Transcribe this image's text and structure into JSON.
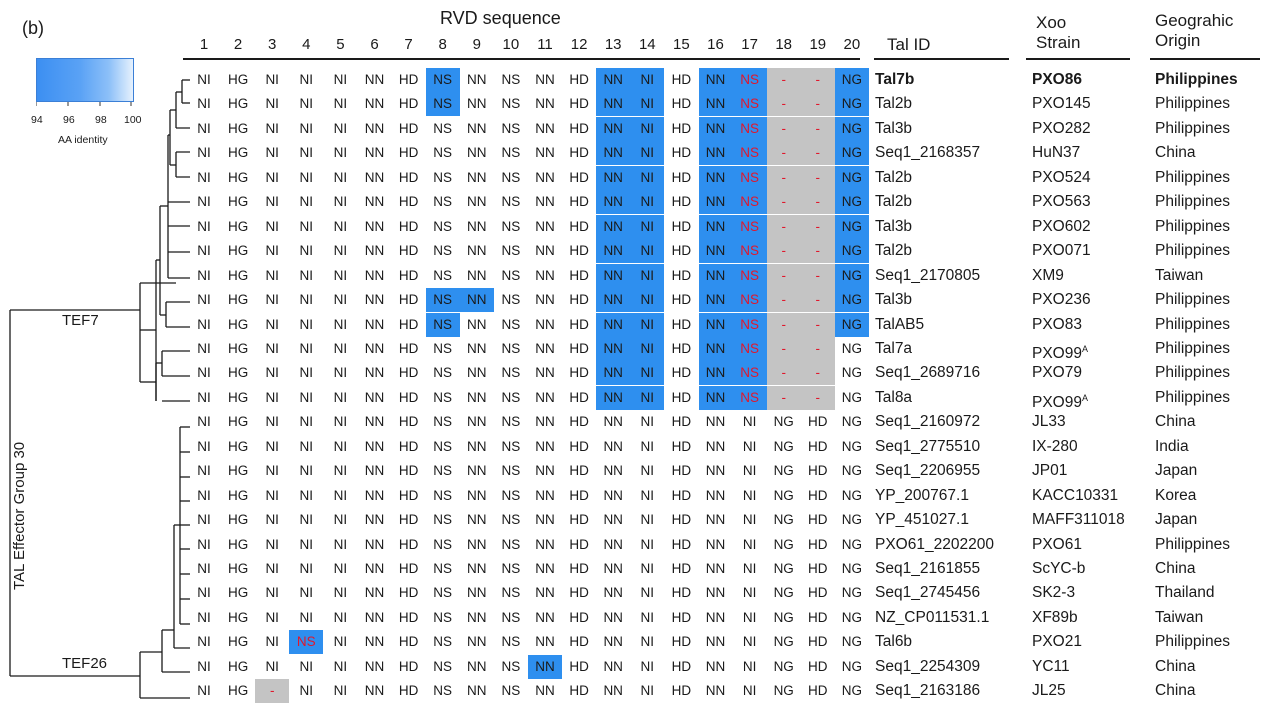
{
  "panel_label": "(b)",
  "rvd_title": "RVD sequence",
  "column_numbers": [
    "1",
    "2",
    "3",
    "4",
    "5",
    "6",
    "7",
    "8",
    "9",
    "10",
    "11",
    "12",
    "13",
    "14",
    "15",
    "16",
    "17",
    "18",
    "19",
    "20"
  ],
  "headers": {
    "tal_id": "Tal ID",
    "xoo_strain_line1": "Xoo",
    "xoo_strain_line2": "Strain",
    "origin_line1": "Geograhic",
    "origin_line2": "Origin"
  },
  "legend": {
    "ticks": [
      "94",
      "96",
      "98",
      "100"
    ],
    "title": "AA identity"
  },
  "group_labels": {
    "tef7": "TEF7",
    "tef26": "TEF26",
    "group": "TAL Effector Group 30"
  },
  "colors": {
    "high_identity": "#2e8fef",
    "missing": "#c4c4c4",
    "deviating_rvd": "#e0182d"
  },
  "rows": [
    {
      "rvds": [
        "NI",
        "HG",
        "NI",
        "NI",
        "NI",
        "NN",
        "HD",
        "NS",
        "NN",
        "NS",
        "NN",
        "HD",
        "NN",
        "NI",
        "HD",
        "NN",
        "NS",
        "-",
        "-",
        "NG"
      ],
      "blue": [
        8,
        13,
        14,
        16,
        17,
        20
      ],
      "red": [
        17,
        18,
        19
      ],
      "gray": [
        18,
        19
      ],
      "tal_id": "Tal7b",
      "strain": "PXO86",
      "origin": "Philippines",
      "bold": true
    },
    {
      "rvds": [
        "NI",
        "HG",
        "NI",
        "NI",
        "NI",
        "NN",
        "HD",
        "NS",
        "NN",
        "NS",
        "NN",
        "HD",
        "NN",
        "NI",
        "HD",
        "NN",
        "NS",
        "-",
        "-",
        "NG"
      ],
      "blue": [
        8,
        13,
        14,
        16,
        17,
        20
      ],
      "red": [
        17,
        18,
        19
      ],
      "gray": [
        18,
        19
      ],
      "tal_id": "Tal2b",
      "strain": "PXO145",
      "origin": "Philippines"
    },
    {
      "rvds": [
        "NI",
        "HG",
        "NI",
        "NI",
        "NI",
        "NN",
        "HD",
        "NS",
        "NN",
        "NS",
        "NN",
        "HD",
        "NN",
        "NI",
        "HD",
        "NN",
        "NS",
        "-",
        "-",
        "NG"
      ],
      "blue": [
        13,
        14,
        16,
        17,
        20
      ],
      "red": [
        17,
        18,
        19
      ],
      "gray": [
        18,
        19
      ],
      "tal_id": "Tal3b",
      "strain": "PXO282",
      "origin": "Philippines"
    },
    {
      "rvds": [
        "NI",
        "HG",
        "NI",
        "NI",
        "NI",
        "NN",
        "HD",
        "NS",
        "NN",
        "NS",
        "NN",
        "HD",
        "NN",
        "NI",
        "HD",
        "NN",
        "NS",
        "-",
        "-",
        "NG"
      ],
      "blue": [
        13,
        14,
        16,
        17,
        20
      ],
      "red": [
        17,
        18,
        19
      ],
      "gray": [
        18,
        19
      ],
      "tal_id": "Seq1_2168357",
      "strain": "HuN37",
      "origin": "China"
    },
    {
      "rvds": [
        "NI",
        "HG",
        "NI",
        "NI",
        "NI",
        "NN",
        "HD",
        "NS",
        "NN",
        "NS",
        "NN",
        "HD",
        "NN",
        "NI",
        "HD",
        "NN",
        "NS",
        "-",
        "-",
        "NG"
      ],
      "blue": [
        13,
        14,
        16,
        17,
        20
      ],
      "red": [
        17,
        18,
        19
      ],
      "gray": [
        18,
        19
      ],
      "tal_id": "Tal2b",
      "strain": "PXO524",
      "origin": "Philippines"
    },
    {
      "rvds": [
        "NI",
        "HG",
        "NI",
        "NI",
        "NI",
        "NN",
        "HD",
        "NS",
        "NN",
        "NS",
        "NN",
        "HD",
        "NN",
        "NI",
        "HD",
        "NN",
        "NS",
        "-",
        "-",
        "NG"
      ],
      "blue": [
        13,
        14,
        16,
        17,
        20
      ],
      "red": [
        17,
        18,
        19
      ],
      "gray": [
        18,
        19
      ],
      "tal_id": "Tal2b",
      "strain": "PXO563",
      "origin": "Philippines"
    },
    {
      "rvds": [
        "NI",
        "HG",
        "NI",
        "NI",
        "NI",
        "NN",
        "HD",
        "NS",
        "NN",
        "NS",
        "NN",
        "HD",
        "NN",
        "NI",
        "HD",
        "NN",
        "NS",
        "-",
        "-",
        "NG"
      ],
      "blue": [
        13,
        14,
        16,
        17,
        20
      ],
      "red": [
        17,
        18,
        19
      ],
      "gray": [
        18,
        19
      ],
      "tal_id": "Tal3b",
      "strain": "PXO602",
      "origin": "Philippines"
    },
    {
      "rvds": [
        "NI",
        "HG",
        "NI",
        "NI",
        "NI",
        "NN",
        "HD",
        "NS",
        "NN",
        "NS",
        "NN",
        "HD",
        "NN",
        "NI",
        "HD",
        "NN",
        "NS",
        "-",
        "-",
        "NG"
      ],
      "blue": [
        13,
        14,
        16,
        17,
        20
      ],
      "red": [
        17,
        18,
        19
      ],
      "gray": [
        18,
        19
      ],
      "tal_id": "Tal2b",
      "strain": "PXO071",
      "origin": "Philippines"
    },
    {
      "rvds": [
        "NI",
        "HG",
        "NI",
        "NI",
        "NI",
        "NN",
        "HD",
        "NS",
        "NN",
        "NS",
        "NN",
        "HD",
        "NN",
        "NI",
        "HD",
        "NN",
        "NS",
        "-",
        "-",
        "NG"
      ],
      "blue": [
        13,
        14,
        16,
        17,
        20
      ],
      "red": [
        17,
        18,
        19
      ],
      "gray": [
        18,
        19
      ],
      "tal_id": "Seq1_2170805",
      "strain": "XM9",
      "origin": "Taiwan"
    },
    {
      "rvds": [
        "NI",
        "HG",
        "NI",
        "NI",
        "NI",
        "NN",
        "HD",
        "NS",
        "NN",
        "NS",
        "NN",
        "HD",
        "NN",
        "NI",
        "HD",
        "NN",
        "NS",
        "-",
        "-",
        "NG"
      ],
      "blue": [
        8,
        9,
        13,
        14,
        16,
        17,
        20
      ],
      "red": [
        17,
        18,
        19
      ],
      "gray": [
        18,
        19
      ],
      "tal_id": "Tal3b",
      "strain": "PXO236",
      "origin": "Philippines"
    },
    {
      "rvds": [
        "NI",
        "HG",
        "NI",
        "NI",
        "NI",
        "NN",
        "HD",
        "NS",
        "NN",
        "NS",
        "NN",
        "HD",
        "NN",
        "NI",
        "HD",
        "NN",
        "NS",
        "-",
        "-",
        "NG"
      ],
      "blue": [
        8,
        13,
        14,
        16,
        17,
        20
      ],
      "red": [
        17,
        18,
        19
      ],
      "gray": [
        18,
        19
      ],
      "tal_id": "TalAB5",
      "strain": "PXO83",
      "origin": "Philippines"
    },
    {
      "rvds": [
        "NI",
        "HG",
        "NI",
        "NI",
        "NI",
        "NN",
        "HD",
        "NS",
        "NN",
        "NS",
        "NN",
        "HD",
        "NN",
        "NI",
        "HD",
        "NN",
        "NS",
        "-",
        "-",
        "NG"
      ],
      "blue": [
        13,
        14,
        16,
        17
      ],
      "red": [
        17,
        18,
        19
      ],
      "gray": [
        18,
        19
      ],
      "tal_id": "Tal7a",
      "strain": "PXO99",
      "strain_sup": "A",
      "origin": "Philippines"
    },
    {
      "rvds": [
        "NI",
        "HG",
        "NI",
        "NI",
        "NI",
        "NN",
        "HD",
        "NS",
        "NN",
        "NS",
        "NN",
        "HD",
        "NN",
        "NI",
        "HD",
        "NN",
        "NS",
        "-",
        "-",
        "NG"
      ],
      "blue": [
        13,
        14,
        16,
        17
      ],
      "red": [
        17,
        18,
        19
      ],
      "gray": [
        18,
        19
      ],
      "tal_id": "Seq1_2689716",
      "strain": "PXO79",
      "origin": "Philippines"
    },
    {
      "rvds": [
        "NI",
        "HG",
        "NI",
        "NI",
        "NI",
        "NN",
        "HD",
        "NS",
        "NN",
        "NS",
        "NN",
        "HD",
        "NN",
        "NI",
        "HD",
        "NN",
        "NS",
        "-",
        "-",
        "NG"
      ],
      "blue": [
        13,
        14,
        16,
        17
      ],
      "red": [
        17,
        18,
        19
      ],
      "gray": [
        18,
        19
      ],
      "tal_id": "Tal8a",
      "strain": "PXO99",
      "strain_sup": "A",
      "origin": "Philippines"
    },
    {
      "rvds": [
        "NI",
        "HG",
        "NI",
        "NI",
        "NI",
        "NN",
        "HD",
        "NS",
        "NN",
        "NS",
        "NN",
        "HD",
        "NN",
        "NI",
        "HD",
        "NN",
        "NI",
        "NG",
        "HD",
        "NG"
      ],
      "blue": [],
      "red": [],
      "gray": [],
      "tal_id": "Seq1_2160972",
      "strain": "JL33",
      "origin": "China"
    },
    {
      "rvds": [
        "NI",
        "HG",
        "NI",
        "NI",
        "NI",
        "NN",
        "HD",
        "NS",
        "NN",
        "NS",
        "NN",
        "HD",
        "NN",
        "NI",
        "HD",
        "NN",
        "NI",
        "NG",
        "HD",
        "NG"
      ],
      "blue": [],
      "red": [],
      "gray": [],
      "tal_id": "Seq1_2775510",
      "strain": "IX-280",
      "origin": "India"
    },
    {
      "rvds": [
        "NI",
        "HG",
        "NI",
        "NI",
        "NI",
        "NN",
        "HD",
        "NS",
        "NN",
        "NS",
        "NN",
        "HD",
        "NN",
        "NI",
        "HD",
        "NN",
        "NI",
        "NG",
        "HD",
        "NG"
      ],
      "blue": [],
      "red": [],
      "gray": [],
      "tal_id": "Seq1_2206955",
      "strain": "JP01",
      "origin": "Japan"
    },
    {
      "rvds": [
        "NI",
        "HG",
        "NI",
        "NI",
        "NI",
        "NN",
        "HD",
        "NS",
        "NN",
        "NS",
        "NN",
        "HD",
        "NN",
        "NI",
        "HD",
        "NN",
        "NI",
        "NG",
        "HD",
        "NG"
      ],
      "blue": [],
      "red": [],
      "gray": [],
      "tal_id": "YP_200767.1",
      "strain": "KACC10331",
      "origin": "Korea"
    },
    {
      "rvds": [
        "NI",
        "HG",
        "NI",
        "NI",
        "NI",
        "NN",
        "HD",
        "NS",
        "NN",
        "NS",
        "NN",
        "HD",
        "NN",
        "NI",
        "HD",
        "NN",
        "NI",
        "NG",
        "HD",
        "NG"
      ],
      "blue": [],
      "red": [],
      "gray": [],
      "tal_id": "YP_451027.1",
      "strain": "MAFF311018",
      "origin": "Japan"
    },
    {
      "rvds": [
        "NI",
        "HG",
        "NI",
        "NI",
        "NI",
        "NN",
        "HD",
        "NS",
        "NN",
        "NS",
        "NN",
        "HD",
        "NN",
        "NI",
        "HD",
        "NN",
        "NI",
        "NG",
        "HD",
        "NG"
      ],
      "blue": [],
      "red": [],
      "gray": [],
      "tal_id": "PXO61_2202200",
      "strain": "PXO61",
      "origin": "Philippines"
    },
    {
      "rvds": [
        "NI",
        "HG",
        "NI",
        "NI",
        "NI",
        "NN",
        "HD",
        "NS",
        "NN",
        "NS",
        "NN",
        "HD",
        "NN",
        "NI",
        "HD",
        "NN",
        "NI",
        "NG",
        "HD",
        "NG"
      ],
      "blue": [],
      "red": [],
      "gray": [],
      "tal_id": "Seq1_2161855",
      "strain": "ScYC-b",
      "origin": "China"
    },
    {
      "rvds": [
        "NI",
        "HG",
        "NI",
        "NI",
        "NI",
        "NN",
        "HD",
        "NS",
        "NN",
        "NS",
        "NN",
        "HD",
        "NN",
        "NI",
        "HD",
        "NN",
        "NI",
        "NG",
        "HD",
        "NG"
      ],
      "blue": [],
      "red": [],
      "gray": [],
      "tal_id": "Seq1_2745456",
      "strain": "SK2-3",
      "origin": "Thailand"
    },
    {
      "rvds": [
        "NI",
        "HG",
        "NI",
        "NI",
        "NI",
        "NN",
        "HD",
        "NS",
        "NN",
        "NS",
        "NN",
        "HD",
        "NN",
        "NI",
        "HD",
        "NN",
        "NI",
        "NG",
        "HD",
        "NG"
      ],
      "blue": [],
      "red": [],
      "gray": [],
      "tal_id": "NZ_CP011531.1",
      "strain": "XF89b",
      "origin": "Taiwan"
    },
    {
      "rvds": [
        "NI",
        "HG",
        "NI",
        "NS",
        "NI",
        "NN",
        "HD",
        "NS",
        "NN",
        "NS",
        "NN",
        "HD",
        "NN",
        "NI",
        "HD",
        "NN",
        "NI",
        "NG",
        "HD",
        "NG"
      ],
      "blue": [
        4
      ],
      "red": [
        4
      ],
      "gray": [],
      "tal_id": "Tal6b",
      "strain": "PXO21",
      "origin": "Philippines"
    },
    {
      "rvds": [
        "NI",
        "HG",
        "NI",
        "NI",
        "NI",
        "NN",
        "HD",
        "NS",
        "NN",
        "NS",
        "NN",
        "HD",
        "NN",
        "NI",
        "HD",
        "NN",
        "NI",
        "NG",
        "HD",
        "NG"
      ],
      "blue": [
        11
      ],
      "red": [],
      "gray": [],
      "tal_id": "Seq1_2254309",
      "strain": "YC11",
      "origin": "China"
    },
    {
      "rvds": [
        "NI",
        "HG",
        "-",
        "NI",
        "NI",
        "NN",
        "HD",
        "NS",
        "NN",
        "NS",
        "NN",
        "HD",
        "NN",
        "NI",
        "HD",
        "NN",
        "NI",
        "NG",
        "HD",
        "NG"
      ],
      "blue": [],
      "red": [
        3
      ],
      "gray": [
        3
      ],
      "tal_id": "Seq1_2163186",
      "strain": "JL25",
      "origin": "China"
    }
  ]
}
